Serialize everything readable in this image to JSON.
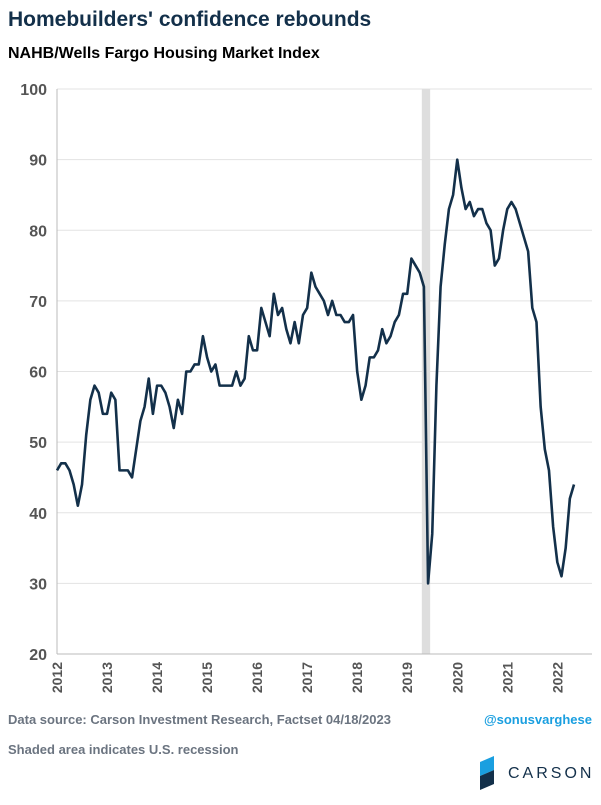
{
  "chart_data": {
    "type": "line",
    "title": "Homebuilders' confidence rebounds",
    "subtitle": "NAHB/Wells Fargo Housing Market Index",
    "source": "Data source: Carson Investment Research, Factset   04/18/2023",
    "handle": "@sonusvarghese",
    "note": "Shaded area indicates U.S. recession",
    "logo_text": "CARSON",
    "categories": [
      "2012",
      null,
      null,
      null,
      null,
      null,
      null,
      null,
      null,
      null,
      null,
      null,
      "2013",
      null,
      null,
      null,
      null,
      null,
      null,
      null,
      null,
      null,
      null,
      null,
      "2014",
      null,
      null,
      null,
      null,
      null,
      null,
      null,
      null,
      null,
      null,
      null,
      "2015",
      null,
      null,
      null,
      null,
      null,
      null,
      null,
      null,
      null,
      null,
      null,
      "2016",
      null,
      null,
      null,
      null,
      null,
      null,
      null,
      null,
      null,
      null,
      null,
      "2017",
      null,
      null,
      null,
      null,
      null,
      null,
      null,
      null,
      null,
      null,
      null,
      "2018",
      null,
      null,
      null,
      null,
      null,
      null,
      null,
      null,
      null,
      null,
      null,
      "2019",
      null,
      null,
      null,
      null,
      null,
      null,
      null,
      null,
      null,
      null,
      null,
      "2020",
      null,
      null,
      null,
      null,
      null,
      null,
      null,
      null,
      null,
      null,
      null,
      "2021",
      null,
      null,
      null,
      null,
      null,
      null,
      null,
      null,
      null,
      null,
      null,
      "2022",
      null,
      null,
      null,
      null
    ],
    "series": [
      {
        "name": "NAHB/Wells Fargo Housing Market Index",
        "color": "#13304a",
        "values": [
          46,
          47,
          47,
          46,
          44,
          41,
          44,
          51,
          56,
          58,
          57,
          54,
          54,
          57,
          56,
          46,
          46,
          46,
          45,
          49,
          53,
          55,
          59,
          54,
          58,
          58,
          57,
          55,
          52,
          56,
          54,
          60,
          60,
          61,
          61,
          65,
          62,
          60,
          61,
          58,
          58,
          58,
          58,
          60,
          58,
          59,
          65,
          63,
          63,
          69,
          67,
          65,
          71,
          68,
          69,
          66,
          64,
          67,
          64,
          68,
          69,
          74,
          72,
          71,
          70,
          68,
          70,
          68,
          68,
          67,
          67,
          68,
          60,
          56,
          58,
          62,
          62,
          63,
          66,
          64,
          65,
          67,
          68,
          71,
          71,
          76,
          75,
          74,
          72,
          30,
          37,
          58,
          72,
          78,
          83,
          85,
          90,
          86,
          83,
          84,
          82,
          83,
          83,
          81,
          80,
          75,
          76,
          80,
          83,
          84,
          83,
          81,
          79,
          77,
          69,
          67,
          55,
          49,
          46,
          38,
          33,
          31,
          35,
          42,
          44
        ]
      }
    ],
    "shaded_categories": [
      87,
      89
    ],
    "ylim": [
      20,
      100
    ],
    "yticks": [
      20,
      30,
      40,
      50,
      60,
      70,
      80,
      90,
      100
    ],
    "grid": true
  }
}
